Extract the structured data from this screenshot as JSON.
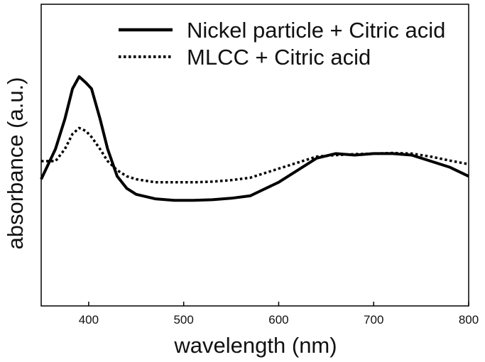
{
  "chart_data": {
    "type": "line",
    "xlabel": "wavelength (nm)",
    "ylabel": "absorbance (a.u.)",
    "xlim": [
      350,
      800
    ],
    "ylim": [
      0,
      1
    ],
    "x_ticks": [
      400,
      500,
      600,
      700,
      800
    ],
    "y_ticks": [],
    "grid": false,
    "legend_position": "top-right",
    "series": [
      {
        "name": "Nickel particle + Citric acid",
        "line_style": "solid",
        "color": "#000000",
        "x": [
          350,
          365,
          375,
          383,
          390,
          397,
          403,
          412,
          420,
          430,
          440,
          450,
          470,
          490,
          510,
          530,
          550,
          570,
          580,
          600,
          620,
          640,
          660,
          680,
          700,
          720,
          740,
          760,
          780,
          800
        ],
        "y": [
          0.42,
          0.52,
          0.62,
          0.72,
          0.76,
          0.74,
          0.72,
          0.62,
          0.52,
          0.43,
          0.39,
          0.37,
          0.355,
          0.35,
          0.35,
          0.352,
          0.357,
          0.365,
          0.38,
          0.41,
          0.45,
          0.49,
          0.505,
          0.5,
          0.505,
          0.505,
          0.5,
          0.48,
          0.46,
          0.43
        ]
      },
      {
        "name": "MLCC + Citric acid",
        "line_style": "dotted",
        "color": "#000000",
        "x": [
          350,
          365,
          375,
          383,
          390,
          397,
          403,
          412,
          420,
          430,
          440,
          450,
          470,
          490,
          510,
          530,
          550,
          570,
          580,
          600,
          620,
          640,
          660,
          680,
          700,
          720,
          740,
          760,
          780,
          800
        ],
        "y": [
          0.48,
          0.48,
          0.52,
          0.57,
          0.59,
          0.58,
          0.56,
          0.52,
          0.48,
          0.45,
          0.43,
          0.42,
          0.41,
          0.41,
          0.41,
          0.412,
          0.417,
          0.425,
          0.435,
          0.455,
          0.475,
          0.495,
          0.5,
          0.503,
          0.505,
          0.507,
          0.505,
          0.495,
          0.482,
          0.47
        ]
      }
    ]
  }
}
